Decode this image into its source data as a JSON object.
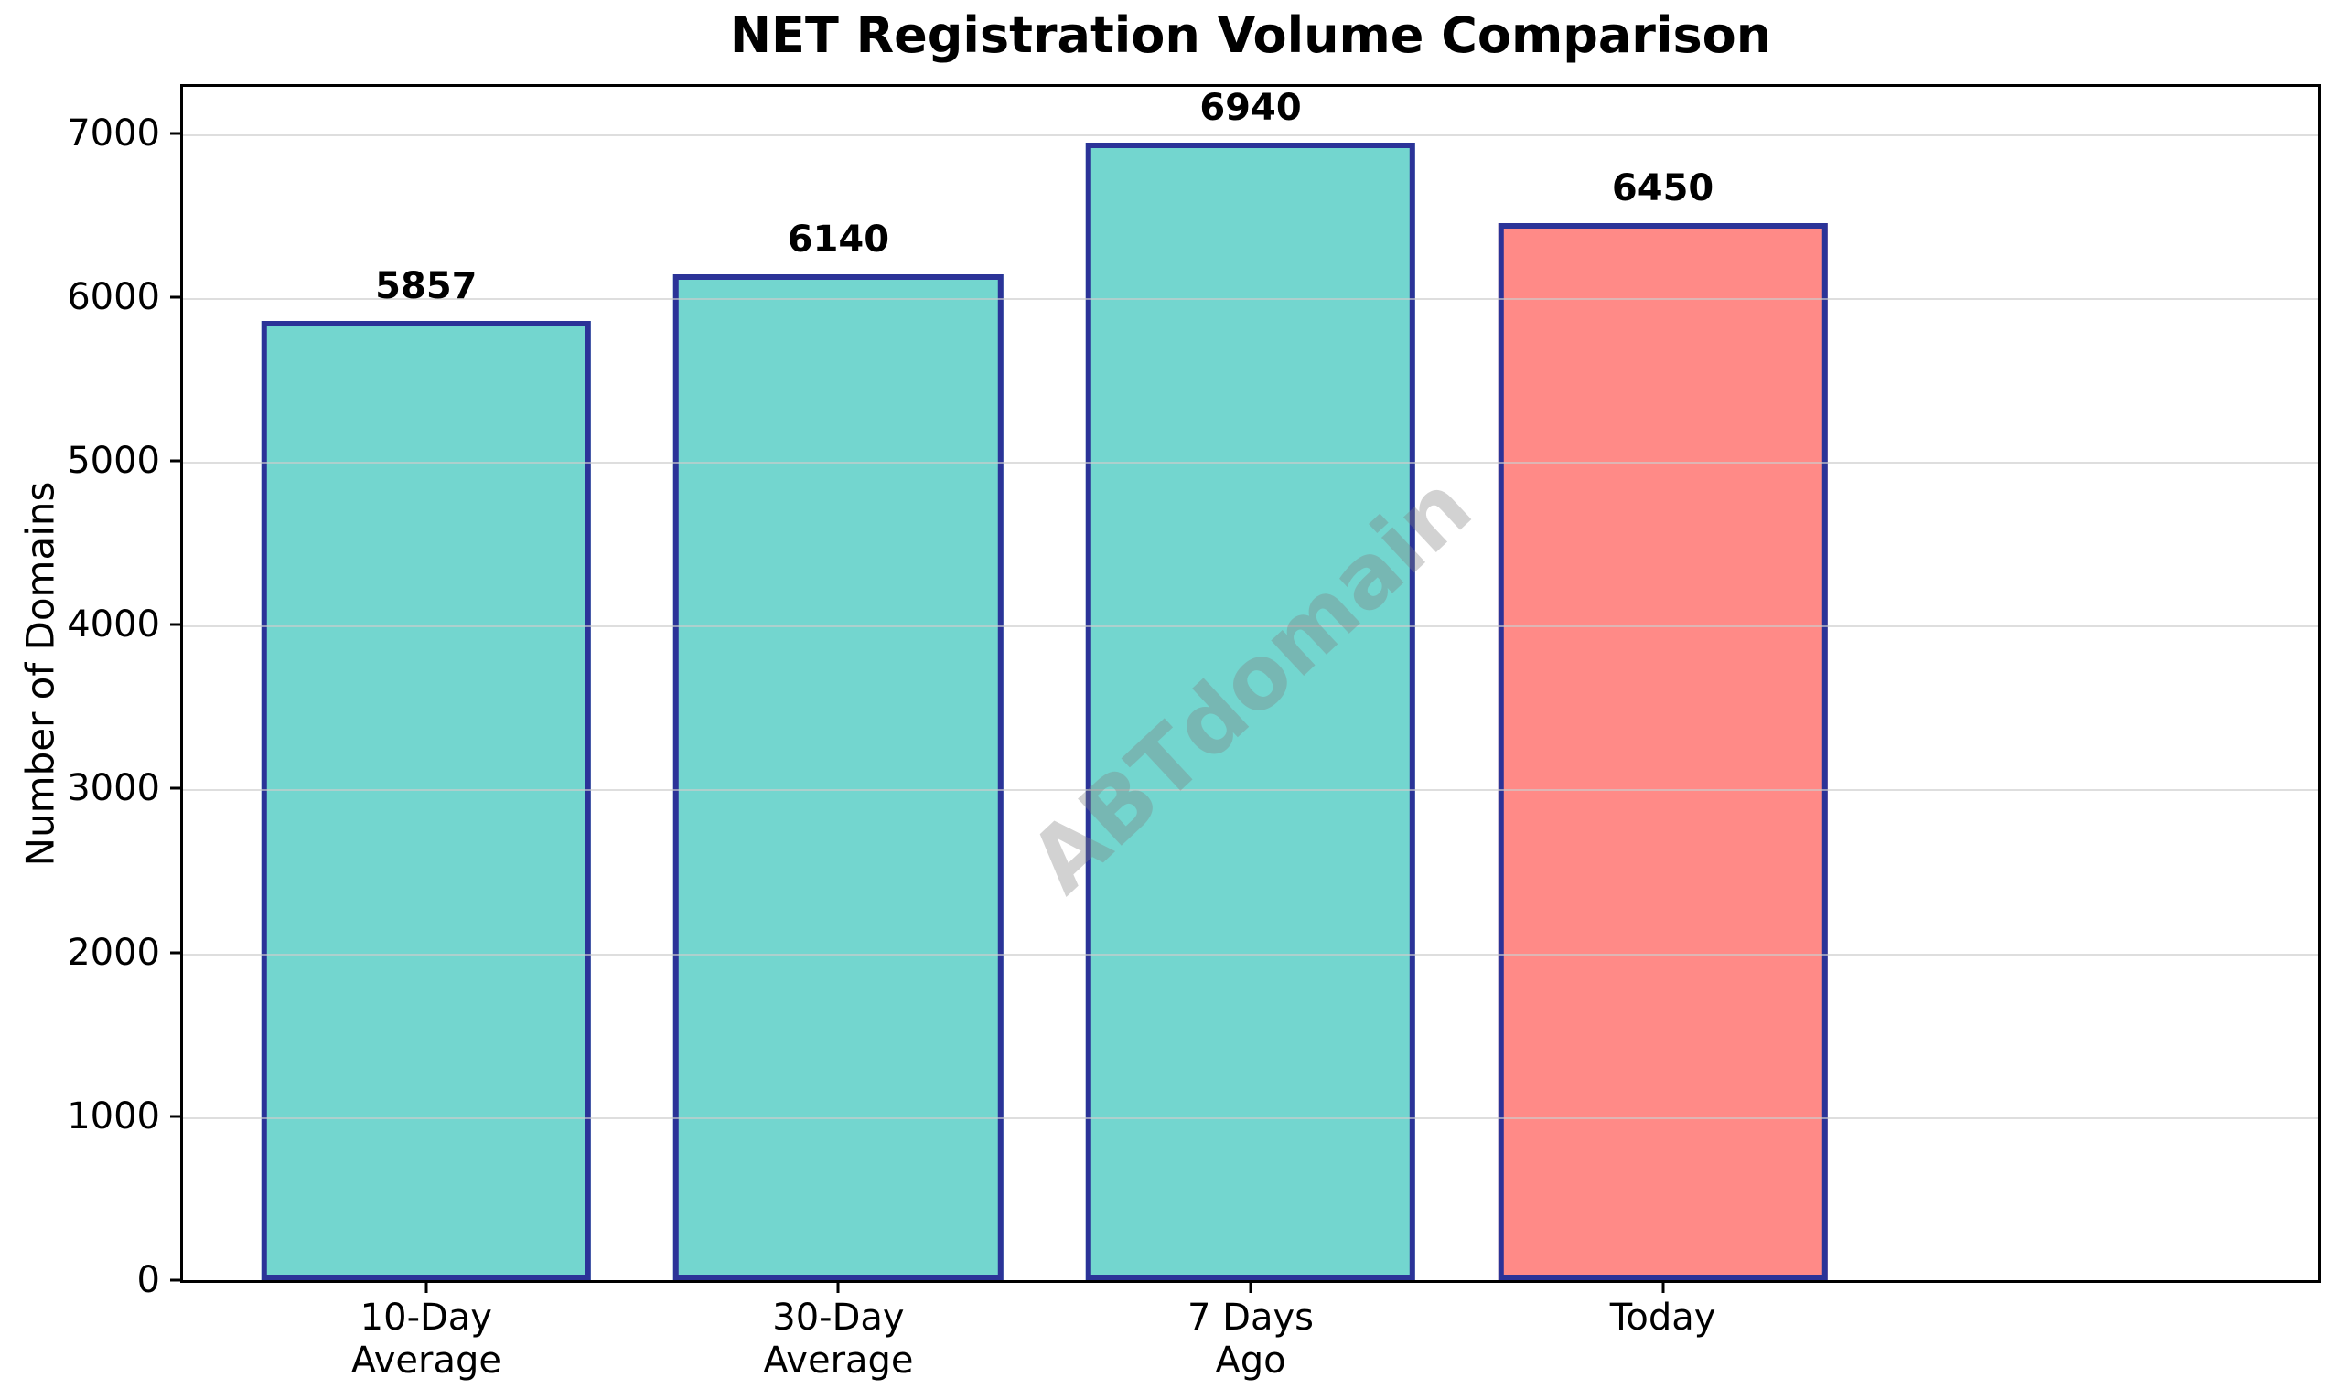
{
  "title": "NET Registration Volume Comparison",
  "y_axis_label": "Number of Domains",
  "watermark_text": "ABTdomain",
  "chart_data": {
    "type": "bar",
    "title": "NET Registration Volume Comparison",
    "xlabel": "",
    "ylabel": "Number of Domains",
    "categories": [
      "10-Day\nAverage",
      "30-Day\nAverage",
      "7 Days\nAgo",
      "Today"
    ],
    "values": [
      5857,
      6140,
      6940,
      6450
    ],
    "bar_labels": [
      "5857",
      "6140",
      "6940",
      "6450"
    ],
    "bar_colors": [
      "#73D6CF",
      "#73D6CF",
      "#73D6CF",
      "#FF8A87"
    ],
    "bar_edge_color": "#2B3398",
    "ylim": [
      0,
      7283
    ],
    "yticks": [
      0,
      1000,
      2000,
      3000,
      4000,
      5000,
      6000,
      7000
    ],
    "ytick_labels": [
      "0",
      "1000",
      "2000",
      "3000",
      "4000",
      "5000",
      "6000",
      "7000"
    ],
    "grid": "horizontal",
    "gridline_color": "rgba(205,205,205,0.65)",
    "legend": "none",
    "watermark": {
      "text": "ABTdomain",
      "rotation_deg": -43,
      "color": "#808080",
      "opacity": 0.35
    }
  }
}
